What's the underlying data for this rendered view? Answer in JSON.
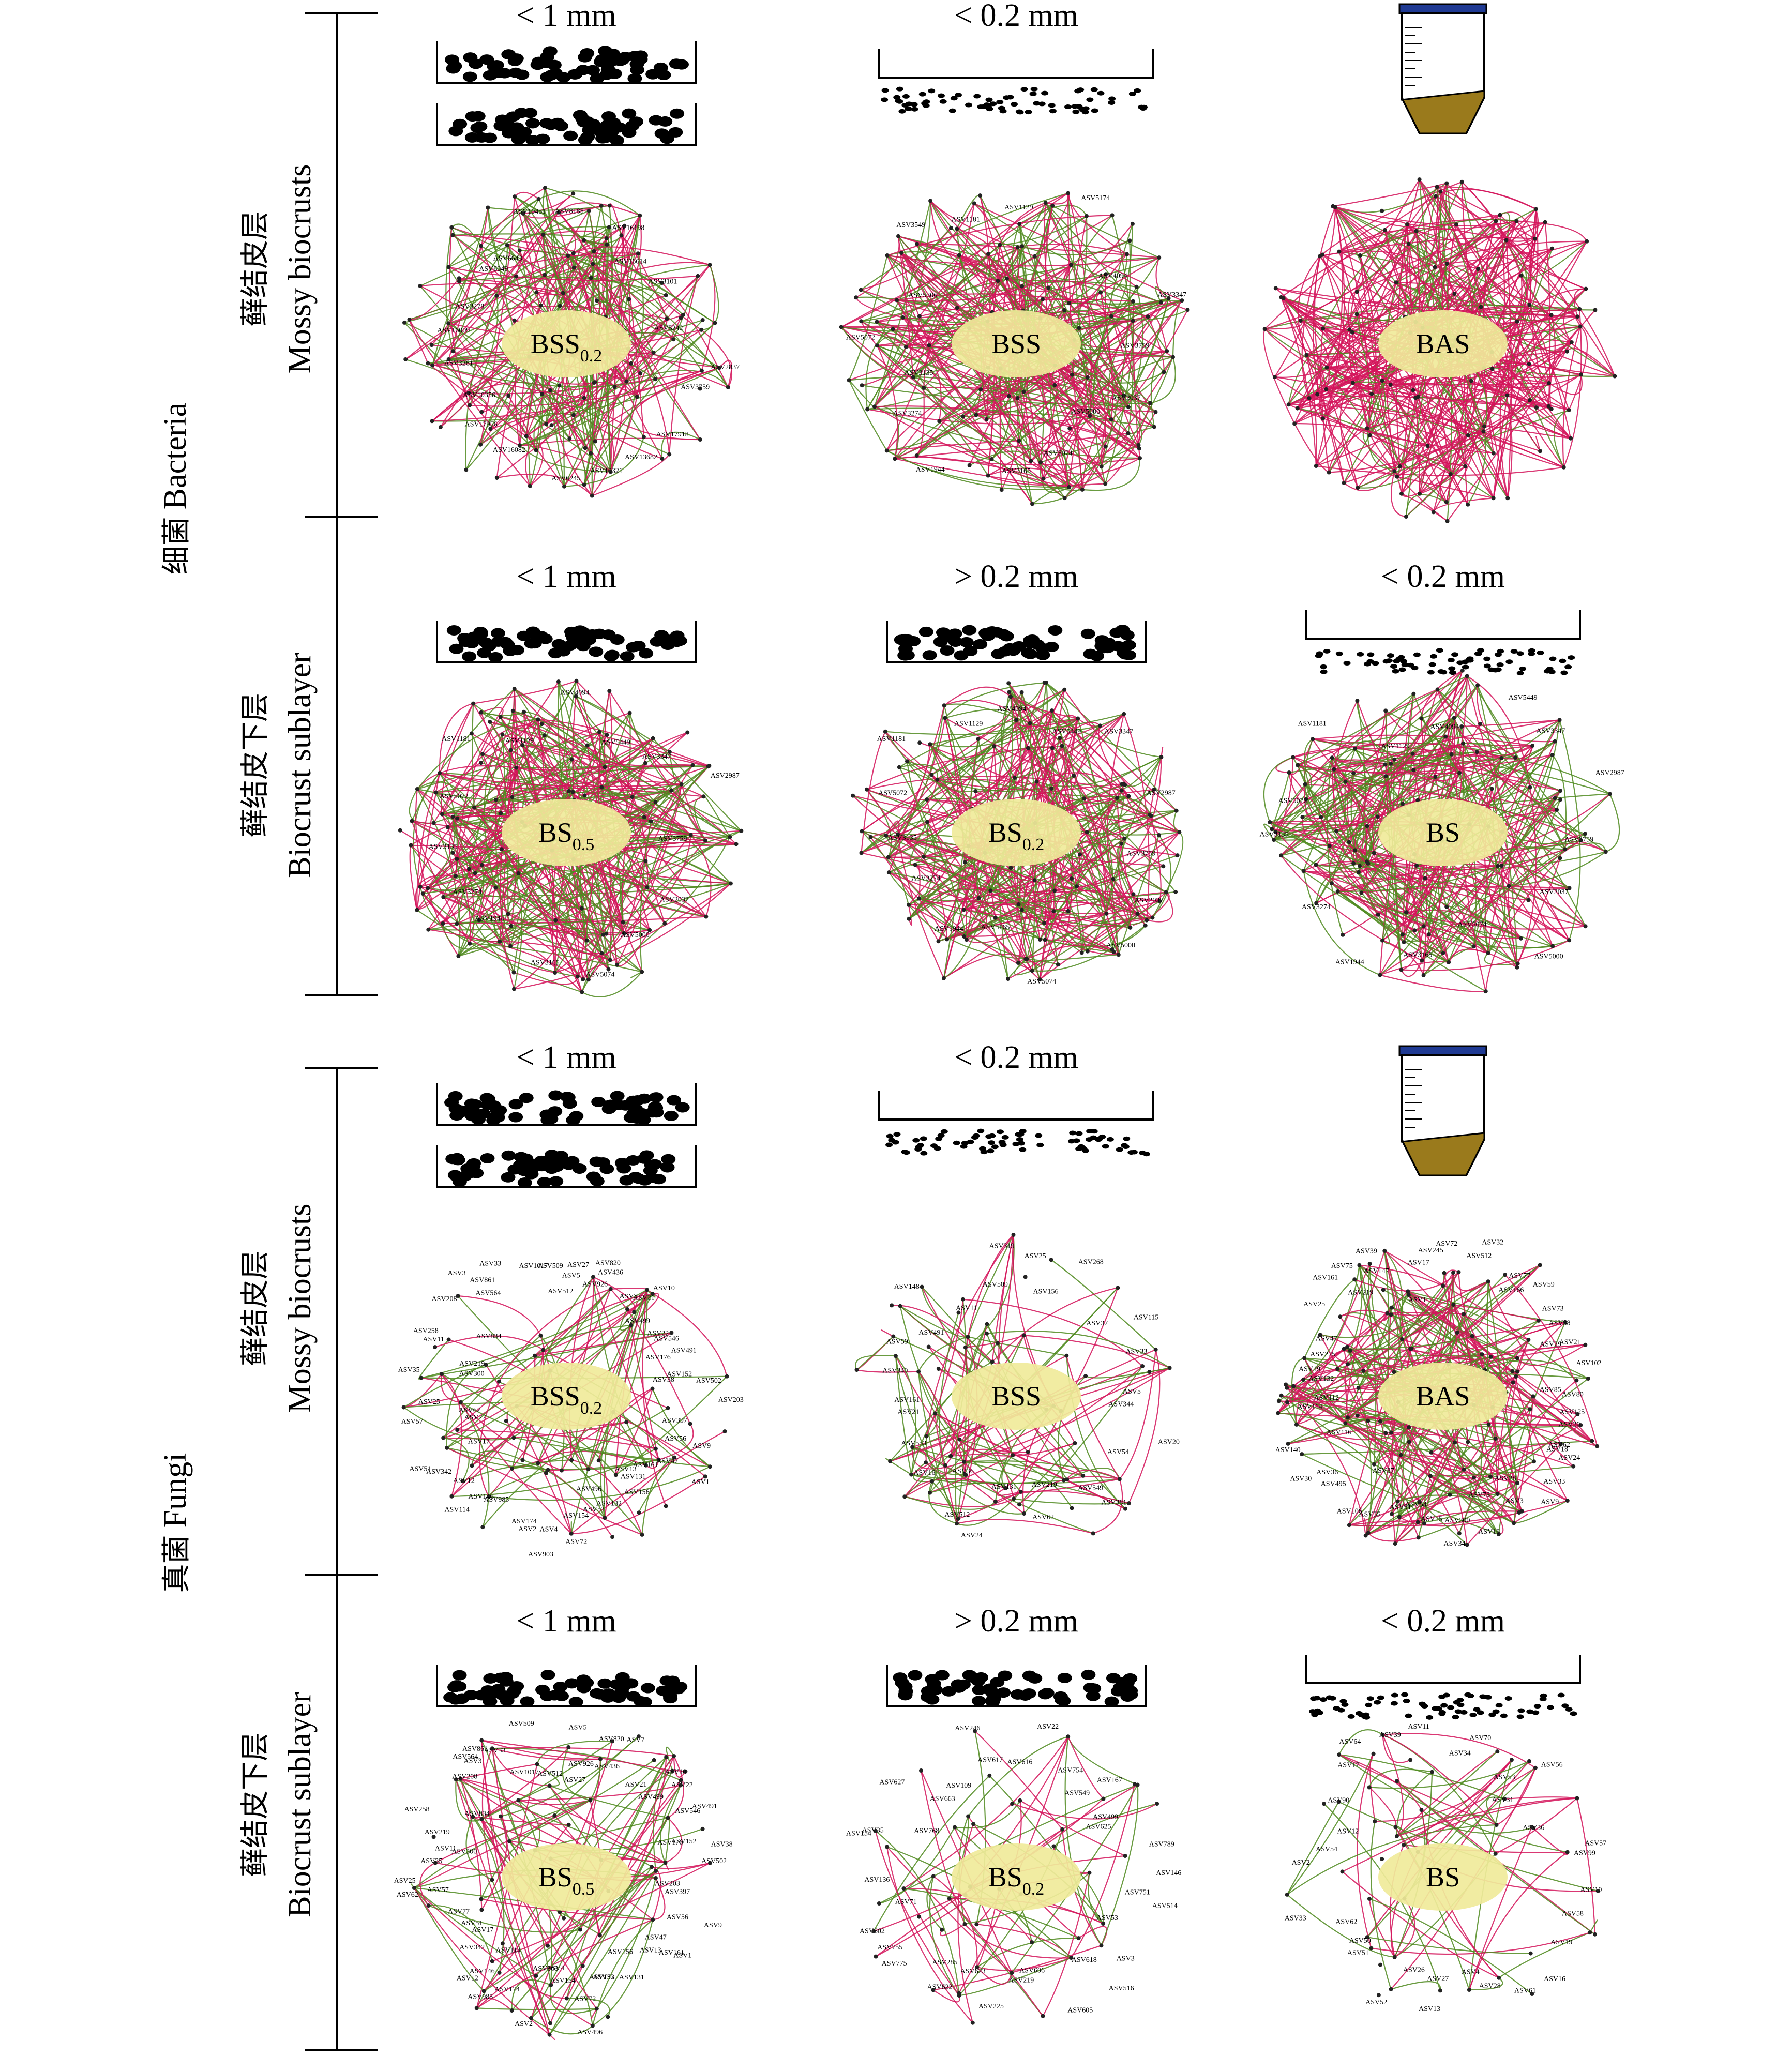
{
  "groups": [
    {
      "cn": "细菌",
      "en": "Bacteria"
    },
    {
      "cn": "真菌",
      "en": "Fungi"
    }
  ],
  "sublabels": {
    "mossy_cn": "藓结皮层",
    "mossy_en": "Mossy biocrusts",
    "sub_cn": "藓结皮下层",
    "sub_en": "Biocrust sublayer"
  },
  "colors": {
    "positive_edge": "#d4145a",
    "negative_edge": "#4f8a1e",
    "oval": "#f0ea9a",
    "tube_cap": "#1f3a93",
    "tube_sediment": "#9a7a1c"
  },
  "rows": [
    {
      "panels": [
        {
          "header": "< 1 mm",
          "icon": "sieve-double",
          "label_main": "BSS",
          "label_sub": "0.2",
          "density": "medium",
          "asv": [
            "ASV2837",
            "ASV3759",
            "ASV17918",
            "ASV13682",
            "ASV10321",
            "ASV6245",
            "ASV16082",
            "ASV17956",
            "ASV10356",
            "ASV3261",
            "ASV16009",
            "ASV3278",
            "ASV6049",
            "ASV6643",
            "ASV10451",
            "ASV8185",
            "ASV16198",
            "ASV16614",
            "ASV3101",
            "ASV5242"
          ]
        },
        {
          "header": "< 0.2 mm",
          "icon": "tray-fine",
          "label_main": "BSS",
          "label_sub": "",
          "density": "dense",
          "asv": [
            "ASV3759",
            "ASV2037",
            "ASV5000",
            "ASV5074",
            "ASV3165",
            "ASV1944",
            "ASV3274",
            "ASV3135",
            "ASV5072",
            "ASV5306",
            "ASV3549",
            "ASV1181",
            "ASV1129",
            "ASV5174",
            "ASV4094",
            "ASV3347"
          ]
        },
        {
          "header": "",
          "icon": "tube",
          "label_main": "BAS",
          "label_sub": "",
          "density": "very-dense",
          "asv": []
        }
      ]
    },
    {
      "panels": [
        {
          "header": "< 1 mm",
          "icon": "sieve-single",
          "label_main": "BS",
          "label_sub": "0.5",
          "density": "dense",
          "asv": [
            "ASV3759",
            "ASV2037",
            "ASV5000",
            "ASV5074",
            "ASV3165",
            "ASV1944",
            "ASV3274",
            "ASV3135",
            "ASV5072",
            "ASV1181",
            "ASV1129",
            "ASV4094",
            "ASV5449",
            "ASV3347",
            "ASV2987"
          ]
        },
        {
          "header": "> 0.2 mm",
          "icon": "sieve-single",
          "label_main": "BS",
          "label_sub": "0.2",
          "density": "dense",
          "asv": [
            "ASV3759",
            "ASV2037",
            "ASV5000",
            "ASV5074",
            "ASV3165",
            "ASV1944",
            "ASV3274",
            "ASV3135",
            "ASV5072",
            "ASV1181",
            "ASV1129",
            "ASV4094",
            "ASV5449",
            "ASV3347",
            "ASV2987"
          ]
        },
        {
          "header": "< 0.2 mm",
          "icon": "tray-fine",
          "label_main": "BS",
          "label_sub": "",
          "density": "dense",
          "asv": [
            "ASV3759",
            "ASV2037",
            "ASV5000",
            "ASV5074",
            "ASV3165",
            "ASV1944",
            "ASV3274",
            "ASV3135",
            "ASV5072",
            "ASV1181",
            "ASV1129",
            "ASV4094",
            "ASV5449",
            "ASV3347",
            "ASV2987"
          ]
        }
      ]
    },
    {
      "panels": [
        {
          "header": "< 1 mm",
          "icon": "sieve-double",
          "label_main": "BSS",
          "label_sub": "0.2",
          "density": "sparse",
          "asv": [
            "ASV203",
            "ASV397",
            "ASV56",
            "ASV9",
            "ASV1",
            "ASV47",
            "ASV161",
            "ASV13",
            "ASV131",
            "ASV156",
            "ASV132",
            "ASV53",
            "ASV496",
            "ASV72",
            "ASV154",
            "ASV4",
            "ASV903",
            "ASV2",
            "ASV174",
            "ASV985",
            "ASV146",
            "ASV114",
            "ASV12",
            "ASV342",
            "ASV17",
            "ASV51",
            "ASV77",
            "ASV57",
            "ASV62",
            "ASV25",
            "ASV35",
            "ASV300",
            "ASV11",
            "ASV219",
            "ASV258",
            "ASV834",
            "ASV208",
            "ASV3",
            "ASV564",
            "ASV861",
            "ASV33",
            "ASV1017",
            "ASV509",
            "ASV512",
            "ASV5",
            "ASV27",
            "ASV926",
            "ASV820",
            "ASV436",
            "ASV7",
            "ASV21",
            "ASV10",
            "ASV499",
            "ASV22",
            "ASV546",
            "ASV491",
            "ASV176",
            "ASV152",
            "ASV38",
            "ASV502"
          ]
        },
        {
          "header": "< 0.2 mm",
          "icon": "tray-fine",
          "label_main": "BSS",
          "label_sub": "",
          "density": "sparse",
          "asv": [
            "ASV344",
            "ASV20",
            "ASV54",
            "ASV381",
            "ASV549",
            "ASV219",
            "ASV62",
            "ASV131",
            "ASV24",
            "ASV512",
            "ASV36",
            "ASV16",
            "ASV553",
            "ASV21",
            "ASV161",
            "ASV340",
            "ASV59",
            "ASV491",
            "ASV148",
            "ASV11",
            "ASV509",
            "ASV319",
            "ASV25",
            "ASV156",
            "ASV268",
            "ASV37",
            "ASV115",
            "ASV33",
            "ASV5"
          ]
        },
        {
          "header": "",
          "icon": "tube",
          "label_main": "BAS",
          "label_sub": "",
          "density": "medium",
          "asv": [
            "ASV125",
            "ASV20",
            "ASV62",
            "ASV18",
            "ASV24",
            "ASV33",
            "ASV9",
            "ASV28",
            "ASV3",
            "ASV73",
            "ASV16",
            "ASV300",
            "ASV34",
            "ASV15",
            "ASV54",
            "ASV91",
            "ASV55",
            "ASV37",
            "ASV106",
            "ASV495",
            "ASV36",
            "ASV30",
            "ASV116",
            "ASV140",
            "ASV114",
            "ASV112",
            "ASV132",
            "ASV19",
            "ASV225",
            "ASV47",
            "ASV25",
            "ASV161",
            "ASV219",
            "ASV75",
            "ASV147",
            "ASV39",
            "ASV1",
            "ASV17",
            "ASV245",
            "ASV72",
            "ASV512",
            "ASV32",
            "ASV77",
            "ASV166",
            "ASV59",
            "ASV73",
            "ASV38",
            "ASV21",
            "ASV29",
            "ASV102",
            "ASV85",
            "ASV80"
          ]
        }
      ]
    },
    {
      "panels": [
        {
          "header": "< 1 mm",
          "icon": "sieve-single",
          "label_main": "BS",
          "label_sub": "0.5",
          "density": "sparse",
          "asv": [
            "ASV203",
            "ASV397",
            "ASV56",
            "ASV9",
            "ASV1",
            "ASV47",
            "ASV161",
            "ASV13",
            "ASV131",
            "ASV156",
            "ASV132",
            "ASV53",
            "ASV496",
            "ASV72",
            "ASV154",
            "ASV4",
            "ASV903",
            "ASV2",
            "ASV174",
            "ASV985",
            "ASV146",
            "ASV114",
            "ASV12",
            "ASV342",
            "ASV17",
            "ASV51",
            "ASV77",
            "ASV57",
            "ASV62",
            "ASV25",
            "ASV35",
            "ASV300",
            "ASV11",
            "ASV219",
            "ASV258",
            "ASV834",
            "ASV208",
            "ASV3",
            "ASV564",
            "ASV861",
            "ASV33",
            "ASV1017",
            "ASV509",
            "ASV512",
            "ASV5",
            "ASV27",
            "ASV926",
            "ASV820",
            "ASV436",
            "ASV7",
            "ASV21",
            "ASV10",
            "ASV499",
            "ASV22",
            "ASV546",
            "ASV491",
            "ASV176",
            "ASV152",
            "ASV38",
            "ASV502"
          ]
        },
        {
          "header": "> 0.2 mm",
          "icon": "sieve-single",
          "label_main": "BS",
          "label_sub": "0.2",
          "density": "very-sparse",
          "asv": [
            "ASV751",
            "ASV514",
            "ASV53",
            "ASV3",
            "ASV516",
            "ASV618",
            "ASV605",
            "ASV606",
            "ASV219",
            "ASV225",
            "ASV623",
            "ASV622",
            "ASV285",
            "ASV775",
            "ASV755",
            "ASV602",
            "ASV71",
            "ASV136",
            "ASV154",
            "ASV35",
            "ASV768",
            "ASV627",
            "ASV663",
            "ASV109",
            "ASV246",
            "ASV617",
            "ASV616",
            "ASV22",
            "ASV754",
            "ASV549",
            "ASV167",
            "ASV499",
            "ASV625",
            "ASV789",
            "ASV146"
          ]
        },
        {
          "header": "< 0.2 mm",
          "icon": "tray-fine",
          "label_main": "BS",
          "label_sub": "",
          "density": "very-sparse",
          "asv": [
            "ASV10",
            "ASV58",
            "ASV19",
            "ASV16",
            "ASV61",
            "ASV28",
            "ASV4",
            "ASV27",
            "ASV13",
            "ASV26",
            "ASV52",
            "ASV51",
            "ASV50",
            "ASV62",
            "ASV33",
            "ASV2",
            "ASV54",
            "ASV12",
            "ASV90",
            "ASV17",
            "ASV64",
            "ASV39",
            "ASV11",
            "ASV34",
            "ASV70",
            "ASV53",
            "ASV31",
            "ASV56",
            "ASV36",
            "ASV57",
            "ASV99"
          ]
        }
      ]
    }
  ]
}
